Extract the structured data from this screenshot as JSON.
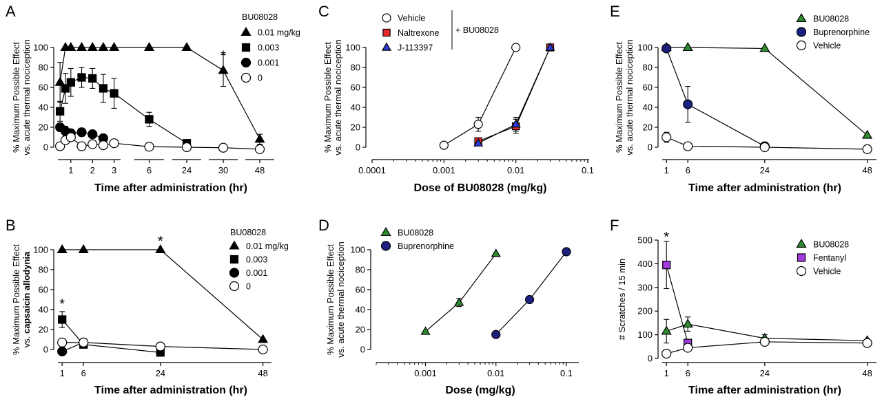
{
  "chart_data": [
    {
      "panel": "A",
      "type": "line",
      "title": "",
      "xlabel": "Time after administration (hr)",
      "ylabel": [
        "% Maximum Possible Effect",
        "vs. acute thermal nociception"
      ],
      "ylim": [
        0,
        100
      ],
      "yticks": [
        0,
        20,
        40,
        60,
        80,
        100
      ],
      "xscale": "broken-time",
      "xtick_labels": [
        "1",
        "2",
        "3",
        "6",
        "24",
        "30",
        "48"
      ],
      "legend_title": "BU08028",
      "legend_position": "top-right",
      "series": [
        {
          "name": "0.01 mg/kg",
          "marker": "triangle",
          "color": "#000000",
          "x": [
            0.5,
            0.75,
            1,
            1.5,
            2,
            2.5,
            3,
            6,
            24,
            30,
            48
          ],
          "y": [
            65,
            100,
            100,
            100,
            100,
            100,
            100,
            100,
            100,
            77,
            8
          ],
          "err": [
            20,
            0,
            0,
            0,
            0,
            0,
            0,
            0,
            0,
            16,
            5
          ]
        },
        {
          "name": "0.003",
          "marker": "square",
          "color": "#000000",
          "x": [
            0.5,
            0.75,
            1,
            1.5,
            2,
            2.5,
            3,
            6,
            24
          ],
          "y": [
            36,
            59,
            65,
            70,
            69,
            59,
            54,
            28,
            4
          ],
          "err": [
            10,
            15,
            14,
            10,
            10,
            14,
            15,
            7,
            2
          ]
        },
        {
          "name": "0.001",
          "marker": "circle",
          "color": "#000000",
          "x": [
            0.5,
            0.75,
            1,
            1.5,
            2,
            2.5
          ],
          "y": [
            20,
            16,
            14,
            15,
            13,
            9
          ],
          "err": [
            4,
            5,
            4,
            4,
            4,
            4
          ]
        },
        {
          "name": "0",
          "marker": "open-circle",
          "color": "#ffffff",
          "x": [
            0.5,
            0.75,
            1,
            1.5,
            2,
            2.5,
            3,
            6,
            24,
            30,
            48
          ],
          "y": [
            1,
            7,
            10,
            1,
            3,
            2,
            4,
            0.5,
            0,
            -0.5,
            -2
          ],
          "err": [
            0,
            3,
            3,
            0,
            0,
            0,
            0,
            0,
            0,
            0,
            0
          ]
        }
      ],
      "annotations": [
        {
          "text": "*",
          "x": 0.75,
          "y": 17
        },
        {
          "text": "*",
          "x": 30,
          "y": 92
        }
      ]
    },
    {
      "panel": "B",
      "type": "line",
      "title": "",
      "xlabel": "Time after administration (hr)",
      "ylabel": [
        "% Maximum Possible Effect",
        "vs. capsaicin allodynia"
      ],
      "ylim": [
        0,
        100
      ],
      "xlim": [
        0,
        50
      ],
      "xticks": [
        1,
        6,
        24,
        48
      ],
      "yticks": [
        0,
        20,
        40,
        60,
        80,
        100
      ],
      "legend_title": "BU08028",
      "legend_position": "top-right",
      "series": [
        {
          "name": "0.01 mg/kg",
          "marker": "triangle",
          "color": "#000000",
          "x": [
            1,
            6,
            24,
            48
          ],
          "y": [
            100,
            100,
            100,
            10
          ],
          "err": [
            0,
            0,
            0,
            0
          ]
        },
        {
          "name": "0.003",
          "marker": "square",
          "color": "#000000",
          "x": [
            1,
            6,
            24
          ],
          "y": [
            30,
            5,
            -3
          ],
          "err": [
            8,
            0,
            0
          ]
        },
        {
          "name": "0.001",
          "marker": "circle",
          "color": "#000000",
          "x": [
            1,
            6
          ],
          "y": [
            -2,
            7
          ],
          "err": [
            0,
            0
          ]
        },
        {
          "name": "0",
          "marker": "open-circle",
          "color": "#ffffff",
          "x": [
            1,
            6,
            24,
            48
          ],
          "y": [
            7,
            7,
            3,
            0
          ],
          "err": [
            0,
            3,
            0,
            0
          ]
        }
      ],
      "annotations": [
        {
          "text": "*",
          "x": 1,
          "y": 46
        },
        {
          "text": "*",
          "x": 24,
          "y": 109
        }
      ]
    },
    {
      "panel": "C",
      "type": "line",
      "title": "",
      "xlabel": "Dose of BU08028 (mg/kg)",
      "ylabel": [
        "% Maximum Possible Effect",
        "vs. acute thermal nociception"
      ],
      "xscale": "log",
      "xlim": [
        0.0001,
        0.1
      ],
      "ylim": [
        0,
        100
      ],
      "xticks": [
        0.0001,
        0.001,
        0.01,
        0.1
      ],
      "xtick_labels": [
        "0.0001",
        "0.001",
        "0.01",
        "0.1"
      ],
      "yticks": [
        0,
        20,
        40,
        60,
        80,
        100
      ],
      "legend_group_label": "+ BU08028",
      "legend_position": "top-left",
      "series": [
        {
          "name": "Vehicle",
          "marker": "open-circle",
          "color": "#ffffff",
          "x": [
            0.001,
            0.003,
            0.01
          ],
          "y": [
            2,
            23,
            100
          ],
          "err": [
            0,
            7,
            0
          ]
        },
        {
          "name": "Naltrexone",
          "marker": "square",
          "color": "#e8292a",
          "x": [
            0.003,
            0.01,
            0.03
          ],
          "y": [
            6,
            21,
            100
          ],
          "err": [
            0,
            7,
            0
          ]
        },
        {
          "name": "J-113397",
          "marker": "triangle",
          "color": "#2b3bd6",
          "x": [
            0.003,
            0.01,
            0.03
          ],
          "y": [
            4,
            23,
            100
          ],
          "err": [
            0,
            7,
            0
          ]
        }
      ]
    },
    {
      "panel": "D",
      "type": "line",
      "title": "",
      "xlabel": "Dose (mg/kg)",
      "ylabel": [
        "% Maximum Possible Effect",
        "vs. acute thermal nociception"
      ],
      "xscale": "log",
      "xlim": [
        0.0002,
        0.15
      ],
      "ylim": [
        0,
        100
      ],
      "xticks": [
        0.001,
        0.01,
        0.1
      ],
      "xtick_labels": [
        "0.001",
        "0.01",
        "0.1"
      ],
      "yticks": [
        0,
        20,
        40,
        60,
        80,
        100
      ],
      "legend_position": "top-left",
      "series": [
        {
          "name": "BU08028",
          "marker": "triangle",
          "color": "#2e8b2e",
          "x": [
            0.001,
            0.003,
            0.01
          ],
          "y": [
            18,
            47,
            96
          ],
          "err": [
            0,
            4,
            0
          ]
        },
        {
          "name": "Buprenorphine",
          "marker": "circle",
          "color": "#1b1f7e",
          "x": [
            0.01,
            0.03,
            0.1
          ],
          "y": [
            15,
            50,
            98
          ],
          "err": [
            0,
            0,
            0
          ]
        }
      ]
    },
    {
      "panel": "E",
      "type": "line",
      "title": "",
      "xlabel": "Time after administration (hr)",
      "ylabel": [
        "% Maximum Possible Effect",
        "vs. acute thermal nociception"
      ],
      "xlim": [
        0,
        50
      ],
      "ylim": [
        0,
        100
      ],
      "xticks": [
        1,
        6,
        24,
        48
      ],
      "yticks": [
        0,
        20,
        40,
        60,
        80,
        100
      ],
      "legend_position": "top-right",
      "series": [
        {
          "name": "BU08028",
          "marker": "triangle",
          "color": "#2e8b2e",
          "x": [
            1,
            6,
            24,
            48
          ],
          "y": [
            100,
            100,
            99,
            12
          ],
          "err": [
            0,
            0,
            0,
            0
          ]
        },
        {
          "name": "Buprenorphine",
          "marker": "circle",
          "color": "#1b1f7e",
          "x": [
            1,
            6,
            24
          ],
          "y": [
            99,
            43,
            1
          ],
          "err": [
            0,
            18,
            0
          ]
        },
        {
          "name": "Vehicle",
          "marker": "open-circle",
          "color": "#ffffff",
          "x": [
            1,
            6,
            24,
            48
          ],
          "y": [
            10,
            1,
            0,
            -2
          ],
          "err": [
            5,
            0,
            0,
            0
          ]
        }
      ]
    },
    {
      "panel": "F",
      "type": "line",
      "title": "",
      "xlabel": "Time after administration (hr)",
      "ylabel": [
        "# Scratches / 15 min"
      ],
      "xlim": [
        0,
        50
      ],
      "ylim": [
        0,
        500
      ],
      "xticks": [
        1,
        6,
        24,
        48
      ],
      "yticks": [
        0,
        100,
        200,
        300,
        400,
        500
      ],
      "legend_position": "right",
      "series": [
        {
          "name": "BU08028",
          "marker": "triangle",
          "color": "#2e8b2e",
          "x": [
            1,
            6,
            24,
            48
          ],
          "y": [
            115,
            145,
            85,
            75
          ],
          "err": [
            50,
            30,
            15,
            0
          ]
        },
        {
          "name": "Fentanyl",
          "marker": "square",
          "color": "#a23be0",
          "x": [
            1,
            6
          ],
          "y": [
            395,
            65
          ],
          "err": [
            100,
            0
          ]
        },
        {
          "name": "Vehicle",
          "marker": "open-circle",
          "color": "#ffffff",
          "x": [
            1,
            6,
            24,
            48
          ],
          "y": [
            20,
            45,
            70,
            65
          ],
          "err": [
            0,
            15,
            0,
            0
          ]
        }
      ],
      "annotations": [
        {
          "text": "*",
          "x": 1,
          "y": 515
        }
      ]
    }
  ]
}
